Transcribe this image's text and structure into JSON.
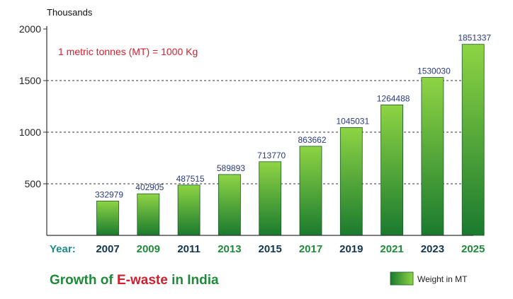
{
  "chart_data": {
    "type": "bar",
    "unit_label": "Thousands",
    "annotation": "1 metric tonnes (MT) = 1000 Kg",
    "x_prefix": "Year:",
    "categories": [
      "2007",
      "2009",
      "2011",
      "2013",
      "2015",
      "2017",
      "2019",
      "2021",
      "2023",
      "2025"
    ],
    "series": [
      {
        "name": "Weight in MT",
        "values": [
          332979,
          402905,
          487515,
          589893,
          713770,
          863662,
          1045031,
          1264488,
          1530030,
          1851337
        ]
      }
    ],
    "data_labels": [
      "332979",
      "402905",
      "487515",
      "589893",
      "713770",
      "863662",
      "1045031",
      "1264488",
      "1530030",
      "1851337"
    ],
    "y_ticks": [
      500,
      1000,
      1500,
      2000
    ],
    "ylim": [
      0,
      2000
    ],
    "y_scale_divisor": 1000,
    "title": {
      "before": "Growth of ",
      "highlight": "E-waste",
      "after": " in India"
    },
    "legend_position": "bottom-right",
    "grid": "dashed horizontal",
    "colors": {
      "bar_top": "#8ed444",
      "bar_bottom": "#1a7a2e",
      "title": "#1f8a3a",
      "highlight": "#d11f2e"
    }
  }
}
